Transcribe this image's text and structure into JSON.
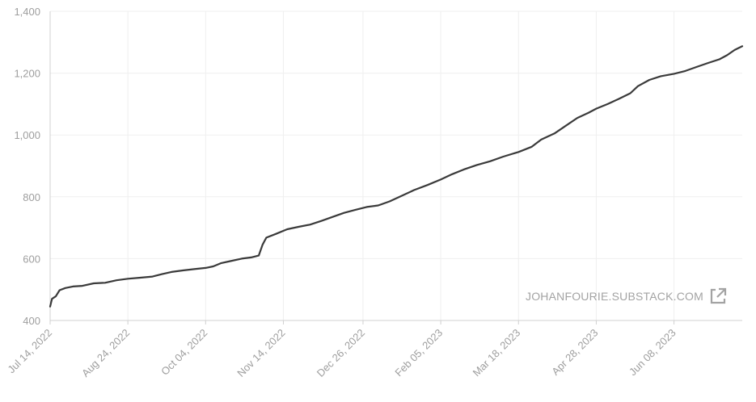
{
  "chart_data": {
    "type": "line",
    "title": "",
    "xlabel": "",
    "ylabel": "",
    "ylim": [
      400,
      1400
    ],
    "yticks": [
      "400",
      "600",
      "800",
      "1,000",
      "1,200",
      "1,400"
    ],
    "yticks_values": [
      400,
      600,
      800,
      1000,
      1200,
      1400
    ],
    "xticks": [
      "Jul 14, 2022",
      "Aug 24, 2022",
      "Oct 04, 2022",
      "Nov 14, 2022",
      "Dec 26, 2022",
      "Feb 05, 2023",
      "Mar 18, 2023",
      "Apr 28, 2023",
      "Jun 08, 2023"
    ],
    "xticks_dates": [
      "2022-07-14",
      "2022-08-24",
      "2022-10-04",
      "2022-11-14",
      "2022-12-26",
      "2023-02-05",
      "2023-03-18",
      "2023-04-28",
      "2023-06-08"
    ],
    "xlim": [
      "2022-07-14",
      "2023-07-14"
    ],
    "grid": true,
    "series": [
      {
        "color": "#3a3a3a",
        "points": [
          [
            "2022-07-14",
            445
          ],
          [
            "2022-07-15",
            470
          ],
          [
            "2022-07-17",
            478
          ],
          [
            "2022-07-19",
            498
          ],
          [
            "2022-07-22",
            505
          ],
          [
            "2022-07-26",
            510
          ],
          [
            "2022-07-31",
            512
          ],
          [
            "2022-08-06",
            520
          ],
          [
            "2022-08-12",
            522
          ],
          [
            "2022-08-18",
            530
          ],
          [
            "2022-08-24",
            535
          ],
          [
            "2022-08-30",
            538
          ],
          [
            "2022-09-06",
            542
          ],
          [
            "2022-09-11",
            550
          ],
          [
            "2022-09-16",
            557
          ],
          [
            "2022-09-22",
            562
          ],
          [
            "2022-09-28",
            566
          ],
          [
            "2022-10-04",
            570
          ],
          [
            "2022-10-08",
            575
          ],
          [
            "2022-10-12",
            585
          ],
          [
            "2022-10-17",
            592
          ],
          [
            "2022-10-23",
            600
          ],
          [
            "2022-10-28",
            604
          ],
          [
            "2022-11-01",
            610
          ],
          [
            "2022-11-03",
            645
          ],
          [
            "2022-11-05",
            668
          ],
          [
            "2022-11-10",
            680
          ],
          [
            "2022-11-16",
            695
          ],
          [
            "2022-11-22",
            703
          ],
          [
            "2022-11-28",
            710
          ],
          [
            "2022-12-04",
            722
          ],
          [
            "2022-12-10",
            735
          ],
          [
            "2022-12-16",
            748
          ],
          [
            "2022-12-22",
            758
          ],
          [
            "2022-12-28",
            767
          ],
          [
            "2023-01-03",
            772
          ],
          [
            "2023-01-09",
            785
          ],
          [
            "2023-01-15",
            802
          ],
          [
            "2023-01-22",
            822
          ],
          [
            "2023-01-29",
            838
          ],
          [
            "2023-02-05",
            856
          ],
          [
            "2023-02-11",
            873
          ],
          [
            "2023-02-17",
            888
          ],
          [
            "2023-02-24",
            903
          ],
          [
            "2023-03-03",
            915
          ],
          [
            "2023-03-10",
            930
          ],
          [
            "2023-03-18",
            945
          ],
          [
            "2023-03-25",
            962
          ],
          [
            "2023-03-30",
            985
          ],
          [
            "2023-04-06",
            1005
          ],
          [
            "2023-04-12",
            1030
          ],
          [
            "2023-04-18",
            1055
          ],
          [
            "2023-04-24",
            1072
          ],
          [
            "2023-04-28",
            1085
          ],
          [
            "2023-05-04",
            1100
          ],
          [
            "2023-05-10",
            1117
          ],
          [
            "2023-05-16",
            1135
          ],
          [
            "2023-05-20",
            1158
          ],
          [
            "2023-05-26",
            1178
          ],
          [
            "2023-06-01",
            1190
          ],
          [
            "2023-06-08",
            1198
          ],
          [
            "2023-06-14",
            1207
          ],
          [
            "2023-06-20",
            1220
          ],
          [
            "2023-06-26",
            1233
          ],
          [
            "2023-07-02",
            1245
          ],
          [
            "2023-07-06",
            1258
          ],
          [
            "2023-07-10",
            1275
          ],
          [
            "2023-07-14",
            1287
          ]
        ]
      }
    ]
  },
  "watermark": {
    "text": "JOHANFOURIE.SUBSTACK.COM",
    "icon": "external-link-icon"
  },
  "colors": {
    "line": "#3a3a3a",
    "grid": "#efefef",
    "axis": "#d0d0d0",
    "tick_text": "#9e9e9e",
    "watermark": "#a3a3a3"
  }
}
